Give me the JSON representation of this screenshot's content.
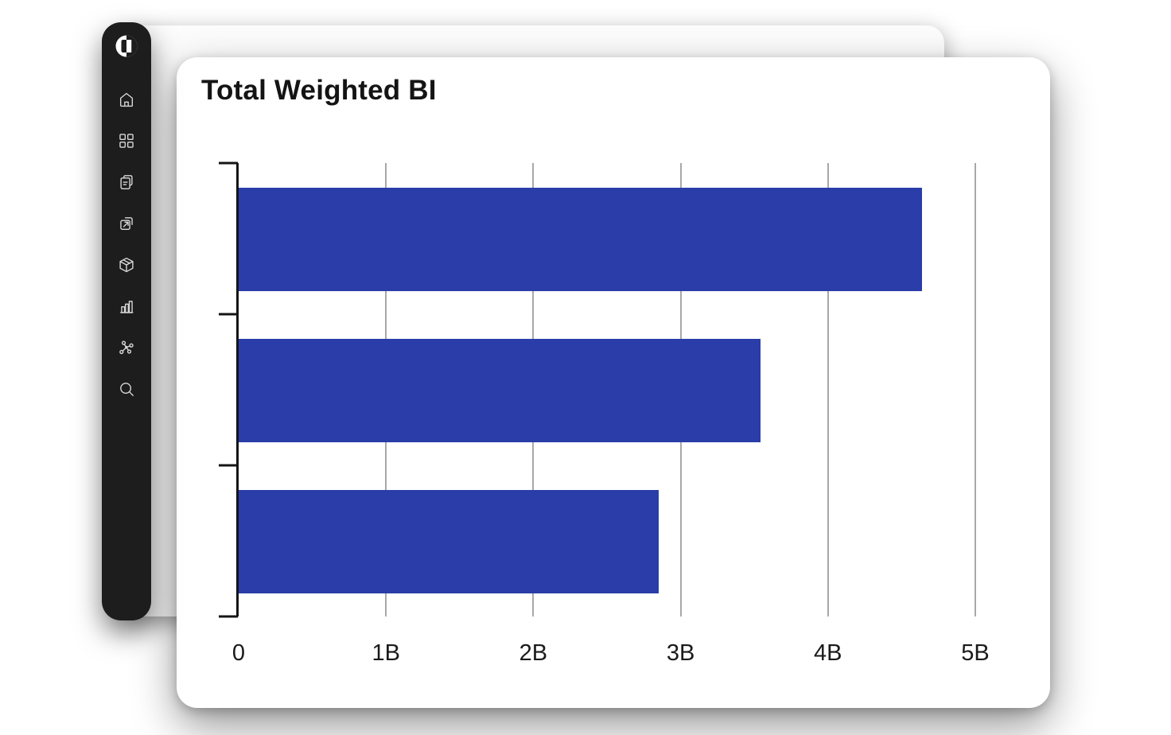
{
  "sidebar": {
    "logo_name": "brand-logo",
    "items": [
      {
        "label": "home",
        "icon": "home-icon"
      },
      {
        "label": "apps",
        "icon": "grid-icon"
      },
      {
        "label": "documents",
        "icon": "documents-icon"
      },
      {
        "label": "share",
        "icon": "share-icon"
      },
      {
        "label": "packages",
        "icon": "package-icon"
      },
      {
        "label": "charts",
        "icon": "bar-chart-icon"
      },
      {
        "label": "network",
        "icon": "network-icon"
      },
      {
        "label": "search",
        "icon": "search-icon"
      }
    ],
    "background": "#1d1d1d",
    "icon_color": "#d9d9d9"
  },
  "chart_data": {
    "type": "bar",
    "orientation": "horizontal",
    "title": "Total Weighted BI",
    "categories": [
      "",
      "",
      ""
    ],
    "series": [
      {
        "name": "Total Weighted BI",
        "values": [
          4.64,
          3.54,
          2.85
        ]
      }
    ],
    "value_unit": "billions",
    "x_ticks": [
      0,
      1,
      2,
      3,
      4,
      5
    ],
    "x_tick_labels": [
      "0",
      "1B",
      "2B",
      "3B",
      "4B",
      "5B"
    ],
    "xlim": [
      0,
      5
    ],
    "grid": true,
    "legend": false,
    "bar_color": "#2a3da8",
    "gridline_color": "#a8a8a8",
    "axis_color": "#151515",
    "tick_label_color": "#1a1a1a"
  },
  "colors": {
    "page_background": "#ffffff",
    "card_background": "#ffffff",
    "title_color": "#141414"
  }
}
